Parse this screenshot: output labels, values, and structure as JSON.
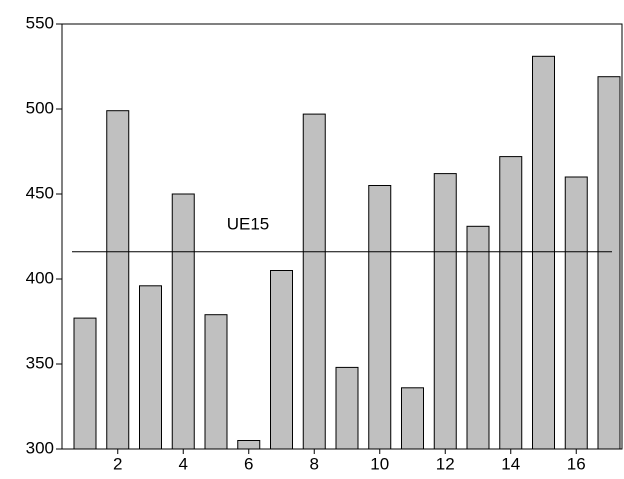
{
  "chart_data": {
    "type": "bar",
    "categories": [
      null,
      "2",
      null,
      "4",
      null,
      "6",
      null,
      "8",
      null,
      "10",
      null,
      "12",
      null,
      "14",
      null,
      "16",
      null
    ],
    "values": [
      377,
      499,
      396,
      450,
      379,
      305,
      405,
      497,
      348,
      455,
      336,
      462,
      431,
      472,
      531,
      460,
      519
    ],
    "color": "#c0c0c0",
    "ylim": [
      300,
      550
    ],
    "yticks": [
      300,
      350,
      400,
      450,
      500,
      550
    ],
    "grid": false,
    "reference_line": {
      "value": 416,
      "label": "UE15"
    }
  }
}
